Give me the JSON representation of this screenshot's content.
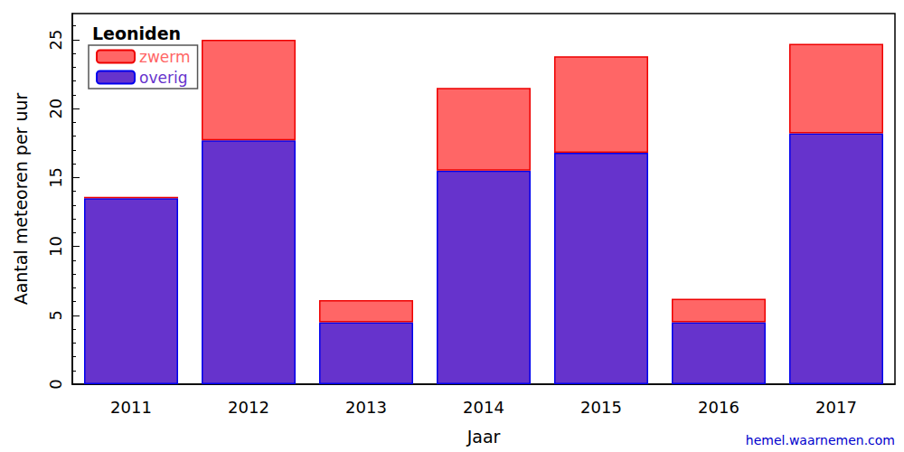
{
  "chart_data": {
    "type": "bar",
    "title": "Leoniden",
    "xlabel": "Jaar",
    "ylabel": "Aantal meteoren per uur",
    "source": "hemel.waarnemen.com",
    "categories": [
      "2011",
      "2012",
      "2013",
      "2014",
      "2015",
      "2016",
      "2017"
    ],
    "series": [
      {
        "name": "overig",
        "color": "#6633cc",
        "values": [
          13.5,
          17.7,
          4.5,
          15.5,
          16.8,
          4.5,
          18.2
        ]
      },
      {
        "name": "zwerm",
        "color": "#ff6666",
        "values": [
          0.1,
          7.3,
          1.6,
          6.0,
          7.0,
          1.7,
          6.5
        ]
      }
    ],
    "stacked": true,
    "legend": "upper left",
    "grid": false,
    "ylim": [
      0,
      26.9
    ],
    "yticks": [
      0,
      5,
      10,
      15,
      20,
      25
    ]
  }
}
